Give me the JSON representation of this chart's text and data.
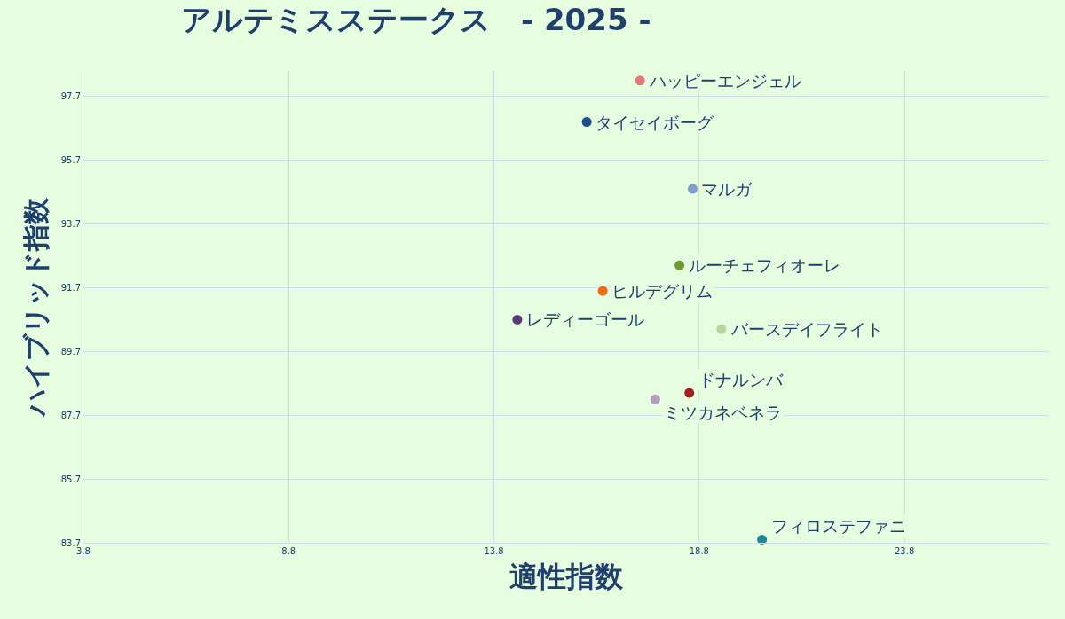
{
  "chart_data": {
    "type": "scatter",
    "title": "アルテミスステークス　- 2025 -",
    "xlabel": "適性指数",
    "ylabel": "ハイブリッド指数",
    "xlim": [
      3.8,
      27.3
    ],
    "xticks": [
      3.8,
      8.8,
      13.8,
      18.8,
      23.8
    ],
    "ylim": [
      83.7,
      98.5
    ],
    "yticks": [
      83.7,
      85.7,
      87.7,
      89.7,
      91.7,
      93.7,
      95.7,
      97.7
    ],
    "grid": true,
    "legend": false,
    "marker": "circle",
    "series": [
      {
        "name": "ハッピーエンジェル",
        "color": "#e07b7b",
        "x": [
          17.36
        ],
        "values": [
          98.2
        ]
      },
      {
        "name": "タイセイボーグ",
        "color": "#1f4e8c",
        "x": [
          16.06
        ],
        "values": [
          96.9
        ]
      },
      {
        "name": "マルガ",
        "color": "#7f9fd0",
        "x": [
          18.64
        ],
        "values": [
          94.8
        ]
      },
      {
        "name": "ルーチェフィオーレ",
        "color": "#6f9a2e",
        "x": [
          18.32
        ],
        "values": [
          92.4
        ]
      },
      {
        "name": "ヒルデグリム",
        "color": "#f26a10",
        "x": [
          16.45
        ],
        "values": [
          91.6
        ]
      },
      {
        "name": "レディーゴール",
        "color": "#5b3a7a",
        "x": [
          14.37
        ],
        "values": [
          90.7
        ]
      },
      {
        "name": "バースデイフライト",
        "color": "#b8d59a",
        "x": [
          19.34
        ],
        "values": [
          90.4
        ]
      },
      {
        "name": "ドナルンバ",
        "color": "#a51c1c",
        "x": [
          18.56
        ],
        "values": [
          88.4
        ]
      },
      {
        "name": "ミツカネベネラ",
        "color": "#b59cc8",
        "x": [
          17.73
        ],
        "values": [
          88.2
        ]
      },
      {
        "name": "フィロステファニ",
        "color": "#1b8a96",
        "x": [
          20.33
        ],
        "values": [
          83.8
        ]
      }
    ]
  }
}
